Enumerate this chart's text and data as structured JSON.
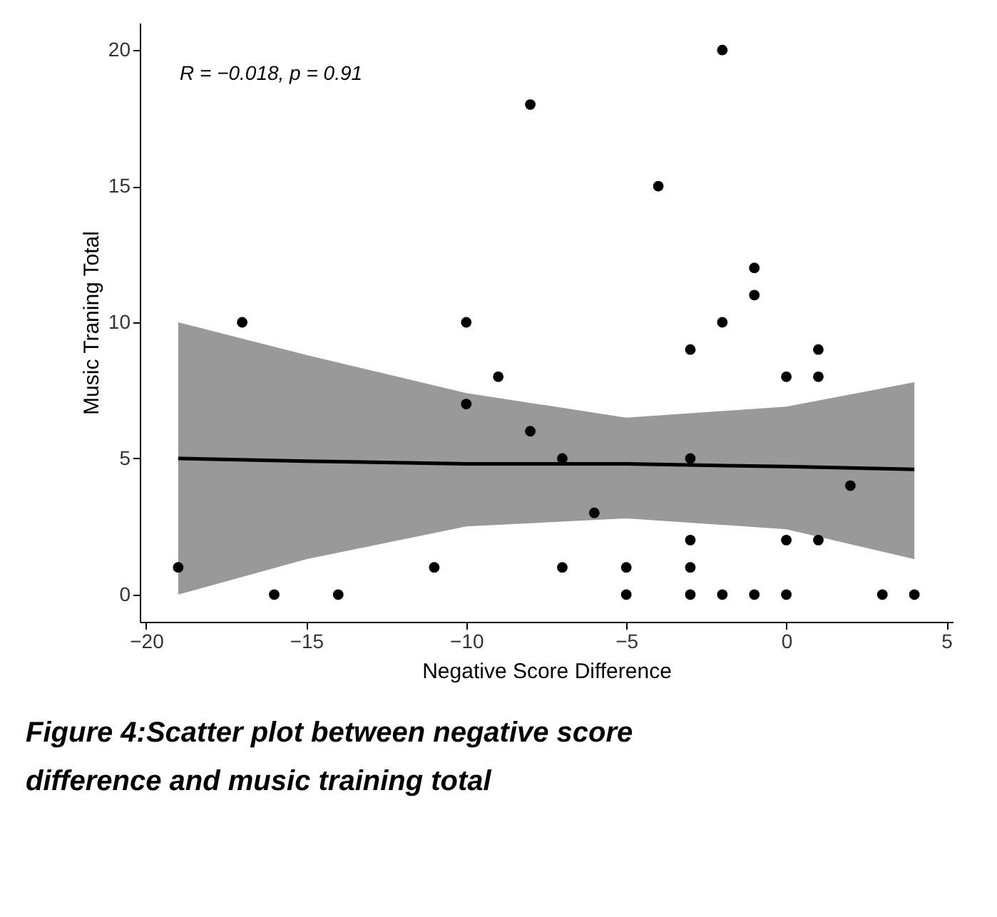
{
  "chart_data": {
    "type": "scatter",
    "xlabel": "Negative Score Difference",
    "ylabel": "Music Traning Total",
    "xlim": [
      -20.2,
      5.2
    ],
    "ylim": [
      -1,
      21
    ],
    "xticks": [
      -20,
      -15,
      -10,
      -5,
      0,
      5
    ],
    "yticks": [
      0,
      5,
      10,
      15,
      20
    ],
    "grid": false,
    "legend": false,
    "series": [
      {
        "type": "scatter",
        "marker": "circle",
        "color": "#000000",
        "x": [
          -19,
          -17,
          -16,
          -14,
          -11,
          -10,
          -10,
          -9,
          -8,
          -8,
          -7,
          -7,
          -6,
          -5,
          -5,
          -4,
          -3,
          -3,
          -3,
          -3,
          -3,
          -2,
          -2,
          -2,
          -1,
          -1,
          -1,
          0,
          0,
          0,
          1,
          1,
          1,
          2,
          3,
          4
        ],
        "values": [
          1,
          10,
          0,
          0,
          1,
          10,
          7,
          8,
          18,
          6,
          5,
          1,
          3,
          1,
          0,
          15,
          9,
          5,
          2,
          1,
          0,
          20,
          10,
          0,
          12,
          11,
          0,
          8,
          2,
          0,
          9,
          8,
          2,
          4,
          0,
          0
        ]
      },
      {
        "type": "line",
        "marker": "none",
        "color": "#000000",
        "x": [
          -19,
          -15,
          -10,
          -5,
          0,
          4
        ],
        "values": [
          5.0,
          4.9,
          4.8,
          4.8,
          4.7,
          4.6
        ],
        "lower": [
          0.0,
          1.3,
          2.5,
          2.8,
          2.4,
          1.3
        ],
        "upper": [
          10.0,
          8.8,
          7.4,
          6.5,
          6.9,
          7.8
        ]
      }
    ],
    "annotations": [
      "R = −0.018, p = 0.91",
      "Figure 4:Scatter plot  between negative score difference and music training total"
    ]
  }
}
